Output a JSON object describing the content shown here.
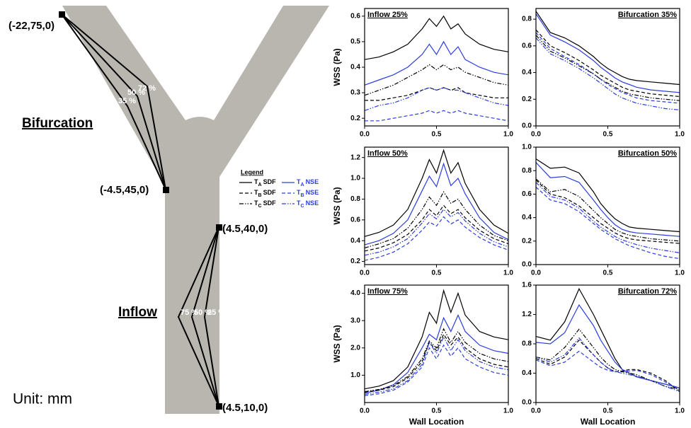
{
  "diagram": {
    "points": [
      "(-22,75,0)",
      "(-4.5,45,0)",
      "(4.5,40,0)",
      "(4.5,10,0)"
    ],
    "regions": [
      "Bifurcation",
      "Inflow"
    ],
    "upper_percents": [
      "35 %",
      "50 %",
      "72 %"
    ],
    "lower_percents": [
      "75 %",
      "50 %",
      "25 %"
    ],
    "unit": "Unit: mm"
  },
  "legend": {
    "title": "Legend",
    "items": [
      {
        "symbol": "T",
        "sub": "A",
        "method": "SDF",
        "color": "#000000",
        "dash": "solid"
      },
      {
        "symbol": "T",
        "sub": "A",
        "method": "NSE",
        "color": "#2b3de0",
        "dash": "solid"
      },
      {
        "symbol": "T",
        "sub": "B",
        "method": "SDF",
        "color": "#000000",
        "dash": "dash"
      },
      {
        "symbol": "T",
        "sub": "B",
        "method": "NSE",
        "color": "#2b3de0",
        "dash": "dash"
      },
      {
        "symbol": "T",
        "sub": "C",
        "method": "SDF",
        "color": "#000000",
        "dash": "dashdotdot"
      },
      {
        "symbol": "T",
        "sub": "C",
        "method": "NSE",
        "color": "#2b3de0",
        "dash": "dashdotdot"
      }
    ]
  },
  "chart_data": [
    {
      "type": "line",
      "title": "Inflow 25%",
      "ylabel": "WSS (Pa)",
      "x": [
        0,
        0.1,
        0.2,
        0.3,
        0.4,
        0.45,
        0.5,
        0.55,
        0.6,
        0.65,
        0.7,
        0.8,
        0.9,
        1
      ],
      "xlim": [
        0,
        1
      ],
      "xticks": [
        {
          "value": 0,
          "label": "0.0"
        },
        0.5,
        {
          "value": 1,
          "label": "1.0"
        }
      ],
      "ylim": [
        0.17,
        0.63
      ],
      "yticks": [
        0.2,
        0.3,
        0.4,
        0.5,
        0.6
      ],
      "series": [
        {
          "color": "#000000",
          "dash": "solid",
          "values": [
            0.43,
            0.44,
            0.46,
            0.49,
            0.55,
            0.59,
            0.56,
            0.6,
            0.55,
            0.57,
            0.53,
            0.49,
            0.47,
            0.46
          ]
        },
        {
          "color": "#2b3de0",
          "dash": "solid",
          "values": [
            0.33,
            0.35,
            0.37,
            0.4,
            0.45,
            0.49,
            0.45,
            0.5,
            0.45,
            0.48,
            0.43,
            0.4,
            0.38,
            0.37
          ]
        },
        {
          "color": "#000000",
          "dash": "dash",
          "values": [
            0.27,
            0.27,
            0.28,
            0.29,
            0.31,
            0.32,
            0.31,
            0.32,
            0.31,
            0.32,
            0.3,
            0.29,
            0.28,
            0.28
          ]
        },
        {
          "color": "#2b3de0",
          "dash": "dash",
          "values": [
            0.19,
            0.19,
            0.2,
            0.21,
            0.22,
            0.23,
            0.22,
            0.23,
            0.22,
            0.23,
            0.22,
            0.21,
            0.2,
            0.19
          ]
        },
        {
          "color": "#000000",
          "dash": "dashdotdot",
          "values": [
            0.29,
            0.31,
            0.33,
            0.36,
            0.39,
            0.41,
            0.39,
            0.41,
            0.39,
            0.4,
            0.38,
            0.36,
            0.34,
            0.33
          ]
        },
        {
          "color": "#2b3de0",
          "dash": "dashdotdot",
          "values": [
            0.23,
            0.25,
            0.26,
            0.28,
            0.31,
            0.32,
            0.31,
            0.32,
            0.31,
            0.31,
            0.3,
            0.28,
            0.26,
            0.25
          ]
        }
      ]
    },
    {
      "type": "line",
      "title": "Bifurcation 35%",
      "x": [
        0,
        0.1,
        0.2,
        0.3,
        0.4,
        0.45,
        0.5,
        0.55,
        0.6,
        0.65,
        0.7,
        0.8,
        0.9,
        1
      ],
      "xlim": [
        0,
        1
      ],
      "xticks": [
        {
          "value": 0,
          "label": "0.0"
        },
        0.5,
        {
          "value": 1,
          "label": "1.0"
        }
      ],
      "ylim": [
        0,
        0.88
      ],
      "yticks": [
        {
          "value": 0,
          "label": "0.0"
        },
        0.2,
        0.4,
        0.6,
        0.8
      ],
      "series": [
        {
          "color": "#000000",
          "dash": "solid",
          "values": [
            0.86,
            0.7,
            0.66,
            0.6,
            0.52,
            0.47,
            0.43,
            0.4,
            0.37,
            0.35,
            0.34,
            0.33,
            0.32,
            0.31
          ]
        },
        {
          "color": "#2b3de0",
          "dash": "solid",
          "values": [
            0.84,
            0.68,
            0.63,
            0.57,
            0.49,
            0.44,
            0.4,
            0.36,
            0.33,
            0.31,
            0.29,
            0.27,
            0.26,
            0.25
          ]
        },
        {
          "color": "#000000",
          "dash": "dash",
          "values": [
            0.72,
            0.6,
            0.55,
            0.49,
            0.42,
            0.38,
            0.35,
            0.32,
            0.29,
            0.27,
            0.26,
            0.24,
            0.23,
            0.22
          ]
        },
        {
          "color": "#2b3de0",
          "dash": "dash",
          "values": [
            0.7,
            0.58,
            0.52,
            0.46,
            0.39,
            0.35,
            0.31,
            0.28,
            0.25,
            0.23,
            0.21,
            0.19,
            0.18,
            0.17
          ]
        },
        {
          "color": "#000000",
          "dash": "dashdotdot",
          "values": [
            0.68,
            0.56,
            0.51,
            0.45,
            0.39,
            0.35,
            0.32,
            0.29,
            0.26,
            0.24,
            0.23,
            0.21,
            0.2,
            0.19
          ]
        },
        {
          "color": "#2b3de0",
          "dash": "dashdotdot",
          "values": [
            0.66,
            0.54,
            0.49,
            0.43,
            0.36,
            0.32,
            0.28,
            0.24,
            0.21,
            0.19,
            0.17,
            0.15,
            0.13,
            0.12
          ]
        }
      ]
    },
    {
      "type": "line",
      "title": "Inflow 50%",
      "ylabel": "WSS (Pa)",
      "x": [
        0,
        0.1,
        0.2,
        0.3,
        0.4,
        0.45,
        0.5,
        0.55,
        0.6,
        0.65,
        0.7,
        0.8,
        0.9,
        1
      ],
      "xlim": [
        0,
        1
      ],
      "xticks": [
        {
          "value": 0,
          "label": "0.0"
        },
        0.5,
        {
          "value": 1,
          "label": "1.0"
        }
      ],
      "ylim": [
        0.17,
        1.3
      ],
      "yticks": [
        0.2,
        0.4,
        0.6,
        0.8,
        {
          "value": 1,
          "label": "1.0"
        },
        1.2
      ],
      "series": [
        {
          "color": "#000000",
          "dash": "solid",
          "values": [
            0.44,
            0.48,
            0.55,
            0.7,
            1.0,
            1.18,
            1.05,
            1.27,
            1.05,
            1.15,
            0.95,
            0.7,
            0.55,
            0.47
          ]
        },
        {
          "color": "#2b3de0",
          "dash": "solid",
          "values": [
            0.36,
            0.4,
            0.47,
            0.6,
            0.88,
            1.02,
            0.92,
            1.14,
            0.93,
            1.0,
            0.85,
            0.62,
            0.48,
            0.41
          ]
        },
        {
          "color": "#000000",
          "dash": "dash",
          "values": [
            0.3,
            0.33,
            0.38,
            0.46,
            0.6,
            0.7,
            0.64,
            0.74,
            0.66,
            0.7,
            0.62,
            0.5,
            0.42,
            0.37
          ]
        },
        {
          "color": "#2b3de0",
          "dash": "dash",
          "values": [
            0.21,
            0.24,
            0.29,
            0.37,
            0.5,
            0.58,
            0.54,
            0.63,
            0.56,
            0.6,
            0.53,
            0.43,
            0.36,
            0.31
          ]
        },
        {
          "color": "#000000",
          "dash": "dashdotdot",
          "values": [
            0.33,
            0.37,
            0.42,
            0.52,
            0.7,
            0.82,
            0.74,
            0.87,
            0.76,
            0.8,
            0.7,
            0.55,
            0.45,
            0.4
          ]
        },
        {
          "color": "#2b3de0",
          "dash": "dashdotdot",
          "values": [
            0.26,
            0.29,
            0.34,
            0.42,
            0.57,
            0.66,
            0.61,
            0.7,
            0.63,
            0.67,
            0.59,
            0.47,
            0.39,
            0.34
          ]
        }
      ]
    },
    {
      "type": "line",
      "title": "Bifurcation 50%",
      "x": [
        0,
        0.1,
        0.2,
        0.3,
        0.4,
        0.45,
        0.5,
        0.55,
        0.6,
        0.65,
        0.7,
        0.8,
        0.9,
        1
      ],
      "xlim": [
        0,
        1
      ],
      "xticks": [
        {
          "value": 0,
          "label": "0.0"
        },
        0.5,
        {
          "value": 1,
          "label": "1.0"
        }
      ],
      "ylim": [
        0,
        1
      ],
      "yticks": [
        {
          "value": 0,
          "label": "0.0"
        },
        0.2,
        0.4,
        0.6,
        0.8,
        {
          "value": 1,
          "label": "1.0"
        }
      ],
      "series": [
        {
          "color": "#000000",
          "dash": "solid",
          "values": [
            0.9,
            0.82,
            0.83,
            0.78,
            0.62,
            0.52,
            0.45,
            0.39,
            0.35,
            0.32,
            0.31,
            0.3,
            0.29,
            0.28
          ]
        },
        {
          "color": "#2b3de0",
          "dash": "solid",
          "values": [
            0.87,
            0.74,
            0.75,
            0.7,
            0.55,
            0.47,
            0.4,
            0.34,
            0.3,
            0.28,
            0.27,
            0.26,
            0.25,
            0.24
          ]
        },
        {
          "color": "#000000",
          "dash": "dash",
          "values": [
            0.72,
            0.6,
            0.57,
            0.5,
            0.4,
            0.35,
            0.31,
            0.27,
            0.24,
            0.22,
            0.21,
            0.2,
            0.19,
            0.18
          ]
        },
        {
          "color": "#2b3de0",
          "dash": "dash",
          "values": [
            0.66,
            0.55,
            0.52,
            0.45,
            0.35,
            0.3,
            0.26,
            0.22,
            0.19,
            0.16,
            0.14,
            0.1,
            0.07,
            0.05
          ]
        },
        {
          "color": "#000000",
          "dash": "dashdotdot",
          "values": [
            0.73,
            0.62,
            0.64,
            0.58,
            0.46,
            0.4,
            0.35,
            0.3,
            0.27,
            0.25,
            0.24,
            0.22,
            0.21,
            0.2
          ]
        },
        {
          "color": "#2b3de0",
          "dash": "dashdotdot",
          "values": [
            0.7,
            0.58,
            0.55,
            0.48,
            0.37,
            0.32,
            0.28,
            0.24,
            0.21,
            0.19,
            0.17,
            0.14,
            0.12,
            0.1
          ]
        }
      ]
    },
    {
      "type": "line",
      "title": "Inflow 75%",
      "ylabel": "WSS (Pa)",
      "xlabel": "Wall Location",
      "x": [
        0,
        0.1,
        0.2,
        0.3,
        0.4,
        0.45,
        0.5,
        0.55,
        0.6,
        0.65,
        0.7,
        0.8,
        0.9,
        1
      ],
      "xlim": [
        0,
        1
      ],
      "xticks": [
        {
          "value": 0,
          "label": "0.0"
        },
        0.5,
        {
          "value": 1,
          "label": "1.0"
        }
      ],
      "ylim": [
        0,
        4.3
      ],
      "yticks": [
        {
          "value": 1,
          "label": "1.0"
        },
        {
          "value": 2,
          "label": "2.0"
        },
        {
          "value": 3,
          "label": "3.0"
        },
        {
          "value": 4,
          "label": "4.0"
        }
      ],
      "series": [
        {
          "color": "#000000",
          "dash": "solid",
          "values": [
            0.5,
            0.6,
            0.8,
            1.3,
            2.4,
            3.3,
            2.9,
            4.1,
            3.3,
            4.0,
            3.2,
            2.6,
            2.4,
            2.3
          ]
        },
        {
          "color": "#2b3de0",
          "dash": "solid",
          "values": [
            0.35,
            0.45,
            0.65,
            1.1,
            2.0,
            2.5,
            2.3,
            3.1,
            2.6,
            3.2,
            2.6,
            2.1,
            1.9,
            1.8
          ]
        },
        {
          "color": "#000000",
          "dash": "dash",
          "values": [
            0.38,
            0.45,
            0.58,
            0.9,
            1.5,
            2.2,
            1.9,
            2.5,
            2.1,
            2.4,
            2.0,
            1.6,
            1.4,
            1.3
          ]
        },
        {
          "color": "#2b3de0",
          "dash": "dash",
          "values": [
            0.25,
            0.32,
            0.45,
            0.75,
            1.3,
            2.0,
            1.6,
            2.1,
            1.7,
            2.0,
            1.6,
            1.3,
            1.1,
            1.0
          ]
        },
        {
          "color": "#000000",
          "dash": "dashdotdot",
          "values": [
            0.4,
            0.48,
            0.62,
            0.95,
            1.6,
            2.25,
            2.0,
            2.7,
            2.2,
            2.6,
            2.2,
            1.8,
            1.6,
            1.5
          ]
        },
        {
          "color": "#2b3de0",
          "dash": "dashdotdot",
          "values": [
            0.3,
            0.38,
            0.5,
            0.8,
            1.4,
            2.2,
            1.8,
            2.4,
            1.9,
            2.3,
            1.9,
            1.5,
            1.3,
            1.2
          ]
        }
      ]
    },
    {
      "type": "line",
      "title": "Bifurcation 72%",
      "xlabel": "Wall Location",
      "x": [
        0,
        0.1,
        0.2,
        0.3,
        0.4,
        0.45,
        0.5,
        0.55,
        0.6,
        0.65,
        0.7,
        0.8,
        0.9,
        1
      ],
      "xlim": [
        0,
        1
      ],
      "xticks": [
        {
          "value": 0,
          "label": "0.0"
        },
        0.5,
        {
          "value": 1,
          "label": "1.0"
        }
      ],
      "ylim": [
        0,
        1.6
      ],
      "yticks": [
        {
          "value": 0,
          "label": "0.0"
        },
        0.4,
        0.8,
        1.2,
        1.6
      ],
      "series": [
        {
          "color": "#000000",
          "dash": "solid",
          "values": [
            0.9,
            0.85,
            1.1,
            1.55,
            1.2,
            1.0,
            0.8,
            0.6,
            0.45,
            0.4,
            0.35,
            0.3,
            0.25,
            0.2
          ]
        },
        {
          "color": "#2b3de0",
          "dash": "solid",
          "values": [
            0.82,
            0.8,
            0.95,
            1.33,
            1.05,
            0.85,
            0.7,
            0.55,
            0.45,
            0.4,
            0.35,
            0.3,
            0.25,
            0.2
          ]
        },
        {
          "color": "#000000",
          "dash": "dash",
          "values": [
            0.6,
            0.52,
            0.62,
            0.85,
            0.65,
            0.55,
            0.47,
            0.42,
            0.43,
            0.45,
            0.45,
            0.4,
            0.3,
            0.15
          ]
        },
        {
          "color": "#2b3de0",
          "dash": "dash",
          "values": [
            0.58,
            0.5,
            0.55,
            0.7,
            0.55,
            0.48,
            0.44,
            0.42,
            0.42,
            0.43,
            0.44,
            0.38,
            0.28,
            0.18
          ]
        },
        {
          "color": "#000000",
          "dash": "dashdotdot",
          "values": [
            0.62,
            0.58,
            0.75,
            1.0,
            0.75,
            0.62,
            0.52,
            0.45,
            0.42,
            0.4,
            0.38,
            0.3,
            0.22,
            0.18
          ]
        },
        {
          "color": "#2b3de0",
          "dash": "dashdotdot",
          "values": [
            0.62,
            0.55,
            0.65,
            0.88,
            0.65,
            0.55,
            0.47,
            0.42,
            0.4,
            0.38,
            0.36,
            0.3,
            0.22,
            0.15
          ]
        }
      ]
    }
  ]
}
